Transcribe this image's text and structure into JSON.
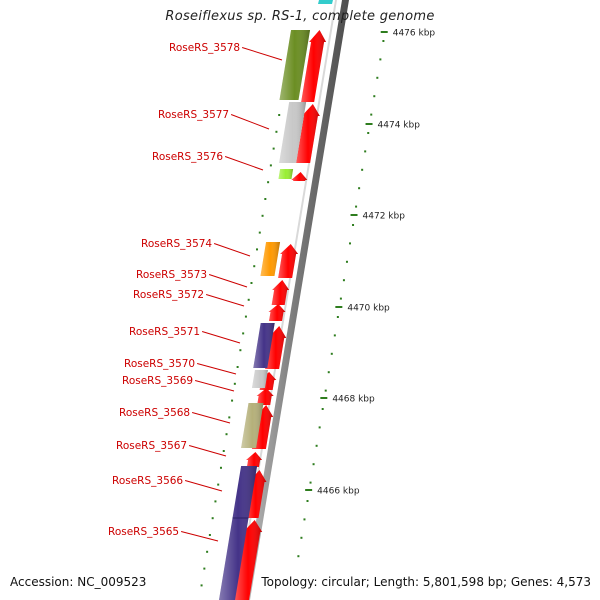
{
  "title": "Roseiflexus sp. RS-1, complete genome",
  "accession": "Accession: NC_009523",
  "summary": "Topology: circular; Length: 5,801,598 bp; Genes: 4,573",
  "colors": {
    "forward_strand": "#ff0000",
    "backbone": "#8c8c8c",
    "gene_label": "#cc0000",
    "tick": "#2e7d1e"
  },
  "genes": [
    {
      "locus": "RoseRS_3578",
      "color": "#6b8e23"
    },
    {
      "locus": "RoseRS_3577",
      "color": "#c8c8c8"
    },
    {
      "locus": "RoseRS_3576",
      "color": "#99ee33"
    },
    {
      "locus": "RoseRS_3574",
      "color": "#ff9900"
    },
    {
      "locus": "RoseRS_3573",
      "color": ""
    },
    {
      "locus": "RoseRS_3572",
      "color": ""
    },
    {
      "locus": "RoseRS_3571",
      "color": "#443388"
    },
    {
      "locus": "RoseRS_3570",
      "color": "#c8c8c8"
    },
    {
      "locus": "RoseRS_3569",
      "color": ""
    },
    {
      "locus": "RoseRS_3568",
      "color": "#b5b07a"
    },
    {
      "locus": "RoseRS_3567",
      "color": ""
    },
    {
      "locus": "RoseRS_3566",
      "color": "#443388"
    },
    {
      "locus": "RoseRS_3565",
      "color": "#443388"
    }
  ],
  "scale_labels": [
    "4476 kbp",
    "4474 kbp",
    "4472 kbp",
    "4470 kbp",
    "4468 kbp",
    "4466 kbp"
  ]
}
